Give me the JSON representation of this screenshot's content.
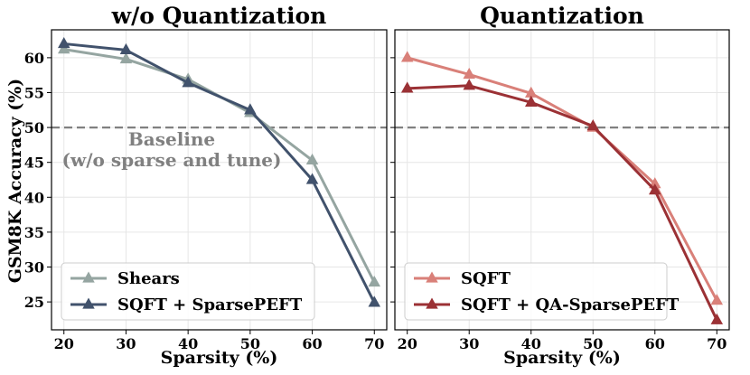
{
  "figure": {
    "ylabel": "GSM8K Accuracy (%)"
  },
  "chart_data": [
    {
      "type": "line",
      "title": "w/o Quantization",
      "xlabel": "Sparsity (%)",
      "x": [
        20,
        30,
        40,
        50,
        60,
        70
      ],
      "xlim": [
        18,
        72
      ],
      "ylim": [
        21,
        64
      ],
      "yticks": [
        25,
        30,
        35,
        40,
        45,
        50,
        55,
        60
      ],
      "grid": true,
      "legend_position": "bottom-left",
      "baseline": {
        "value": 50,
        "label_line1": "Baseline",
        "label_line2": "(w/o sparse and tune)",
        "color": "#808080"
      },
      "series": [
        {
          "name": "Shears",
          "color": "#95a5a1",
          "values": [
            61.2,
            59.8,
            56.9,
            52.1,
            45.3,
            27.8
          ]
        },
        {
          "name": "SQFT + SparsePEFT",
          "color": "#41526c",
          "values": [
            62.0,
            61.1,
            56.4,
            52.5,
            42.5,
            24.9
          ]
        }
      ]
    },
    {
      "type": "line",
      "title": "Quantization",
      "xlabel": "Sparsity (%)",
      "x": [
        20,
        30,
        40,
        50,
        60,
        70
      ],
      "xlim": [
        18,
        72
      ],
      "ylim": [
        21,
        64
      ],
      "yticks": [
        25,
        30,
        35,
        40,
        45,
        50,
        55,
        60
      ],
      "grid": true,
      "legend_position": "bottom-left",
      "baseline": {
        "value": 50,
        "color": "#808080"
      },
      "series": [
        {
          "name": "SQFT",
          "color": "#d98079",
          "values": [
            60.0,
            57.6,
            54.9,
            50.0,
            41.9,
            25.2
          ]
        },
        {
          "name": "SQFT + QA-SparsePEFT",
          "color": "#9b3135",
          "values": [
            55.6,
            56.0,
            53.6,
            50.2,
            41.0,
            22.4
          ]
        }
      ]
    }
  ]
}
